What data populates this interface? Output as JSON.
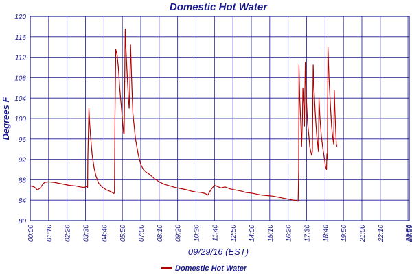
{
  "chart_data": {
    "type": "line",
    "title": "Domestic Hot Water",
    "xlabel": "09/29/16 (EST)",
    "ylabel": "Degrees F",
    "ylim": [
      80,
      120
    ],
    "y_ticks": [
      80,
      84,
      88,
      92,
      96,
      100,
      104,
      108,
      112,
      116,
      120
    ],
    "x_range_minutes": [
      0,
      1440
    ],
    "x_ticks": [
      {
        "t": 0,
        "label": "00:00"
      },
      {
        "t": 70,
        "label": "01:10"
      },
      {
        "t": 140,
        "label": "02:20"
      },
      {
        "t": 210,
        "label": "03:30"
      },
      {
        "t": 280,
        "label": "04:40"
      },
      {
        "t": 350,
        "label": "05:50"
      },
      {
        "t": 420,
        "label": "07:00"
      },
      {
        "t": 490,
        "label": "08:10"
      },
      {
        "t": 560,
        "label": "09:20"
      },
      {
        "t": 630,
        "label": "10:30"
      },
      {
        "t": 700,
        "label": "11:40"
      },
      {
        "t": 770,
        "label": "12:50"
      },
      {
        "t": 840,
        "label": "14:00"
      },
      {
        "t": 910,
        "label": "15:10"
      },
      {
        "t": 980,
        "label": "16:20"
      },
      {
        "t": 1050,
        "label": "17:30"
      },
      {
        "t": 1120,
        "label": "18:40"
      },
      {
        "t": 1190,
        "label": "19:50"
      },
      {
        "t": 1260,
        "label": "21:00"
      },
      {
        "t": 1330,
        "label": "22:10"
      },
      {
        "t": 1435,
        "label": "23:55"
      },
      {
        "t": 1440,
        "label": "23:59"
      }
    ],
    "grid": true,
    "legend": "bottom-center",
    "series": [
      {
        "name": "Domestic Hot Water",
        "color": "#b00000",
        "points": [
          [
            0,
            86.8
          ],
          [
            15,
            86.6
          ],
          [
            28,
            86.0
          ],
          [
            40,
            86.5
          ],
          [
            48,
            87.2
          ],
          [
            56,
            87.5
          ],
          [
            70,
            87.6
          ],
          [
            90,
            87.5
          ],
          [
            110,
            87.3
          ],
          [
            130,
            87.1
          ],
          [
            150,
            86.9
          ],
          [
            170,
            86.8
          ],
          [
            190,
            86.6
          ],
          [
            205,
            86.5
          ],
          [
            215,
            86.7
          ],
          [
            218,
            86.5
          ],
          [
            219,
            92.0
          ],
          [
            223,
            102.0
          ],
          [
            226,
            99.0
          ],
          [
            230,
            96.0
          ],
          [
            235,
            93.0
          ],
          [
            242,
            90.5
          ],
          [
            250,
            88.7
          ],
          [
            260,
            87.3
          ],
          [
            275,
            86.5
          ],
          [
            290,
            86.0
          ],
          [
            305,
            85.7
          ],
          [
            315,
            85.4
          ],
          [
            318,
            85.3
          ],
          [
            320,
            85.5
          ],
          [
            322,
            100.0
          ],
          [
            325,
            113.5
          ],
          [
            330,
            112.5
          ],
          [
            335,
            110.0
          ],
          [
            340,
            106.0
          ],
          [
            350,
            100.0
          ],
          [
            355,
            97.0
          ],
          [
            357,
            97.0
          ],
          [
            361,
            117.5
          ],
          [
            364,
            113.5
          ],
          [
            368,
            109.0
          ],
          [
            373,
            104.0
          ],
          [
            376,
            102.0
          ],
          [
            378,
            105.0
          ],
          [
            381,
            114.5
          ],
          [
            385,
            108.0
          ],
          [
            390,
            101.0
          ],
          [
            400,
            96.0
          ],
          [
            410,
            93.0
          ],
          [
            420,
            91.0
          ],
          [
            430,
            90.0
          ],
          [
            440,
            89.5
          ],
          [
            455,
            89.0
          ],
          [
            470,
            88.3
          ],
          [
            490,
            87.6
          ],
          [
            510,
            87.1
          ],
          [
            530,
            86.8
          ],
          [
            550,
            86.5
          ],
          [
            570,
            86.3
          ],
          [
            590,
            86.1
          ],
          [
            610,
            85.8
          ],
          [
            630,
            85.6
          ],
          [
            650,
            85.5
          ],
          [
            665,
            85.3
          ],
          [
            675,
            85.0
          ],
          [
            680,
            85.5
          ],
          [
            690,
            86.3
          ],
          [
            700,
            86.9
          ],
          [
            710,
            86.7
          ],
          [
            725,
            86.4
          ],
          [
            740,
            86.6
          ],
          [
            760,
            86.2
          ],
          [
            780,
            86.0
          ],
          [
            800,
            85.8
          ],
          [
            820,
            85.5
          ],
          [
            840,
            85.4
          ],
          [
            860,
            85.2
          ],
          [
            880,
            85.0
          ],
          [
            900,
            84.9
          ],
          [
            920,
            84.8
          ],
          [
            940,
            84.6
          ],
          [
            960,
            84.4
          ],
          [
            980,
            84.2
          ],
          [
            1000,
            84.0
          ],
          [
            1010,
            83.9
          ],
          [
            1015,
            83.8
          ],
          [
            1018,
            83.8
          ],
          [
            1020,
            90.0
          ],
          [
            1021,
            110.5
          ],
          [
            1024,
            104.0
          ],
          [
            1028,
            99.0
          ],
          [
            1031,
            94.5
          ],
          [
            1034,
            100.0
          ],
          [
            1036,
            106.0
          ],
          [
            1040,
            102.0
          ],
          [
            1042,
            98.5
          ],
          [
            1045,
            111.0
          ],
          [
            1049,
            104.0
          ],
          [
            1054,
            99.0
          ],
          [
            1058,
            97.0
          ],
          [
            1062,
            94.5
          ],
          [
            1066,
            93.5
          ],
          [
            1069,
            92.8
          ],
          [
            1072,
            93.5
          ],
          [
            1075,
            110.5
          ],
          [
            1078,
            106.0
          ],
          [
            1083,
            101.0
          ],
          [
            1088,
            97.0
          ],
          [
            1093,
            94.5
          ],
          [
            1095,
            93.5
          ],
          [
            1097,
            104.0
          ],
          [
            1101,
            100.0
          ],
          [
            1106,
            96.5
          ],
          [
            1112,
            94.0
          ],
          [
            1118,
            92.0
          ],
          [
            1122,
            90.5
          ],
          [
            1126,
            90.0
          ],
          [
            1127,
            93.0
          ],
          [
            1129,
            92.0
          ],
          [
            1131,
            114.0
          ],
          [
            1135,
            108.0
          ],
          [
            1140,
            103.0
          ],
          [
            1145,
            98.5
          ],
          [
            1150,
            96.0
          ],
          [
            1153,
            95.0
          ],
          [
            1155,
            105.5
          ],
          [
            1158,
            101.0
          ],
          [
            1161,
            97.0
          ],
          [
            1163,
            95.0
          ],
          [
            1165,
            94.5
          ]
        ]
      }
    ]
  }
}
